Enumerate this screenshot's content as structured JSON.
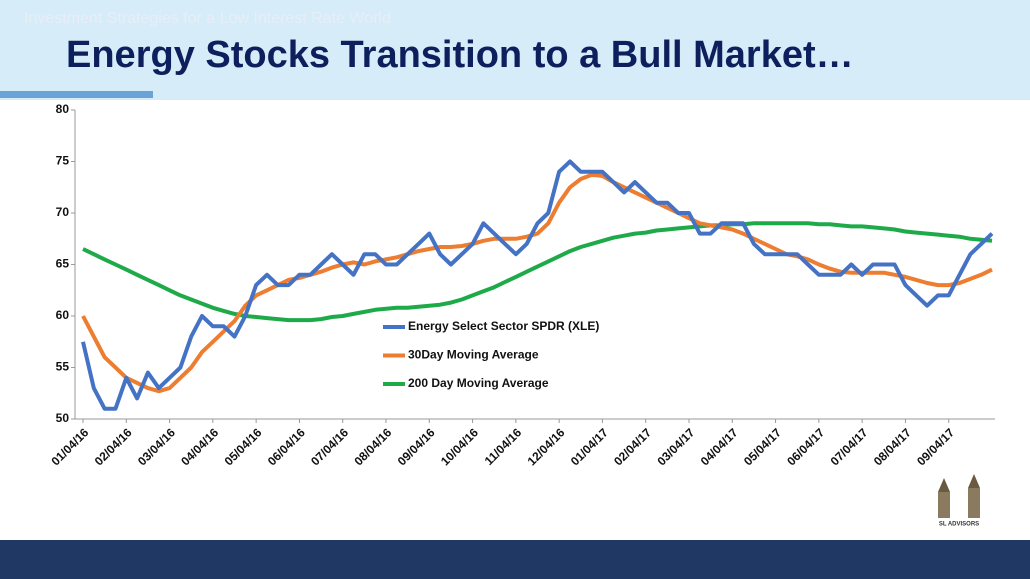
{
  "chart_data": {
    "type": "line",
    "title": "Energy Stocks Transition to a Bull Market…",
    "categories": [
      "01/04/16",
      null,
      null,
      null,
      "02/04/16",
      null,
      null,
      null,
      "03/04/16",
      null,
      null,
      null,
      "04/04/16",
      null,
      null,
      null,
      "05/04/16",
      null,
      null,
      null,
      "06/04/16",
      null,
      null,
      null,
      "07/04/16",
      null,
      null,
      null,
      "08/04/16",
      null,
      null,
      null,
      "09/04/16",
      null,
      null,
      null,
      "10/04/16",
      null,
      null,
      null,
      "11/04/16",
      null,
      null,
      null,
      "12/04/16",
      null,
      null,
      null,
      "01/04/17",
      null,
      null,
      null,
      "02/04/17",
      null,
      null,
      null,
      "03/04/17",
      null,
      null,
      null,
      "04/04/17",
      null,
      null,
      null,
      "05/04/17",
      null,
      null,
      null,
      "06/04/17",
      null,
      null,
      null,
      "07/04/17",
      null,
      null,
      null,
      "08/04/17",
      null,
      null,
      null,
      "09/04/17",
      null,
      null,
      null,
      null
    ],
    "series": [
      {
        "name": "Energy Select Sector SPDR (XLE)",
        "color": "#4472c4",
        "values": [
          57.5,
          53,
          51,
          51,
          54,
          52,
          54.5,
          53,
          54,
          55,
          58,
          60,
          59,
          59,
          58,
          60,
          63,
          64,
          63,
          63,
          64,
          64,
          65,
          66,
          65,
          64,
          66,
          66,
          65,
          65,
          66,
          67,
          68,
          66,
          65,
          66,
          67,
          69,
          68,
          67,
          66,
          67,
          69,
          70,
          74,
          75,
          74,
          74,
          74,
          73,
          72,
          73,
          72,
          71,
          71,
          70,
          70,
          68,
          68,
          69,
          69,
          69,
          67,
          66,
          66,
          66,
          66,
          65,
          64,
          64,
          64,
          65,
          64,
          65,
          65,
          65,
          63,
          62,
          61,
          62,
          62,
          64,
          66,
          67,
          68
        ]
      },
      {
        "name": "30Day Moving Average",
        "color": "#ed7d31",
        "values": [
          60,
          58,
          56,
          55,
          54,
          53.5,
          53,
          52.7,
          53,
          54,
          55,
          56.5,
          57.5,
          58.5,
          59.5,
          61,
          62,
          62.5,
          63,
          63.5,
          63.7,
          64,
          64.3,
          64.7,
          65,
          65.2,
          65,
          65.3,
          65.5,
          65.7,
          66,
          66.3,
          66.5,
          66.7,
          66.7,
          66.8,
          67,
          67.3,
          67.5,
          67.5,
          67.5,
          67.7,
          68,
          69,
          71,
          72.5,
          73.3,
          73.7,
          73.6,
          73,
          72.5,
          72,
          71.5,
          71,
          70.5,
          70,
          69.5,
          69,
          68.8,
          68.6,
          68.4,
          68,
          67.5,
          67,
          66.5,
          66,
          65.8,
          65.5,
          65,
          64.6,
          64.3,
          64.2,
          64.2,
          64.2,
          64.2,
          64,
          63.8,
          63.5,
          63.2,
          63,
          63,
          63.2,
          63.6,
          64,
          64.5
        ]
      },
      {
        "name": "200 Day Moving Average",
        "color": "#1faa4a",
        "values": [
          66.5,
          66,
          65.5,
          65,
          64.5,
          64,
          63.5,
          63,
          62.5,
          62,
          61.6,
          61.2,
          60.8,
          60.5,
          60.2,
          60,
          59.9,
          59.8,
          59.7,
          59.6,
          59.6,
          59.6,
          59.7,
          59.9,
          60,
          60.2,
          60.4,
          60.6,
          60.7,
          60.8,
          60.8,
          60.9,
          61,
          61.1,
          61.3,
          61.6,
          62,
          62.4,
          62.8,
          63.3,
          63.8,
          64.3,
          64.8,
          65.3,
          65.8,
          66.3,
          66.7,
          67,
          67.3,
          67.6,
          67.8,
          68,
          68.1,
          68.3,
          68.4,
          68.5,
          68.6,
          68.7,
          68.8,
          68.8,
          68.9,
          68.9,
          69,
          69,
          69,
          69,
          69,
          69,
          68.9,
          68.9,
          68.8,
          68.7,
          68.7,
          68.6,
          68.5,
          68.4,
          68.2,
          68.1,
          68,
          67.9,
          67.8,
          67.7,
          67.5,
          67.4,
          67.3
        ]
      }
    ],
    "ylim": [
      50,
      80
    ],
    "yticks": [
      50,
      55,
      60,
      65,
      70,
      75,
      80
    ],
    "grid": false
  },
  "footer": "Investment Strategies for a Low Interest Rate World",
  "logo_text": "SL ADVISORS"
}
